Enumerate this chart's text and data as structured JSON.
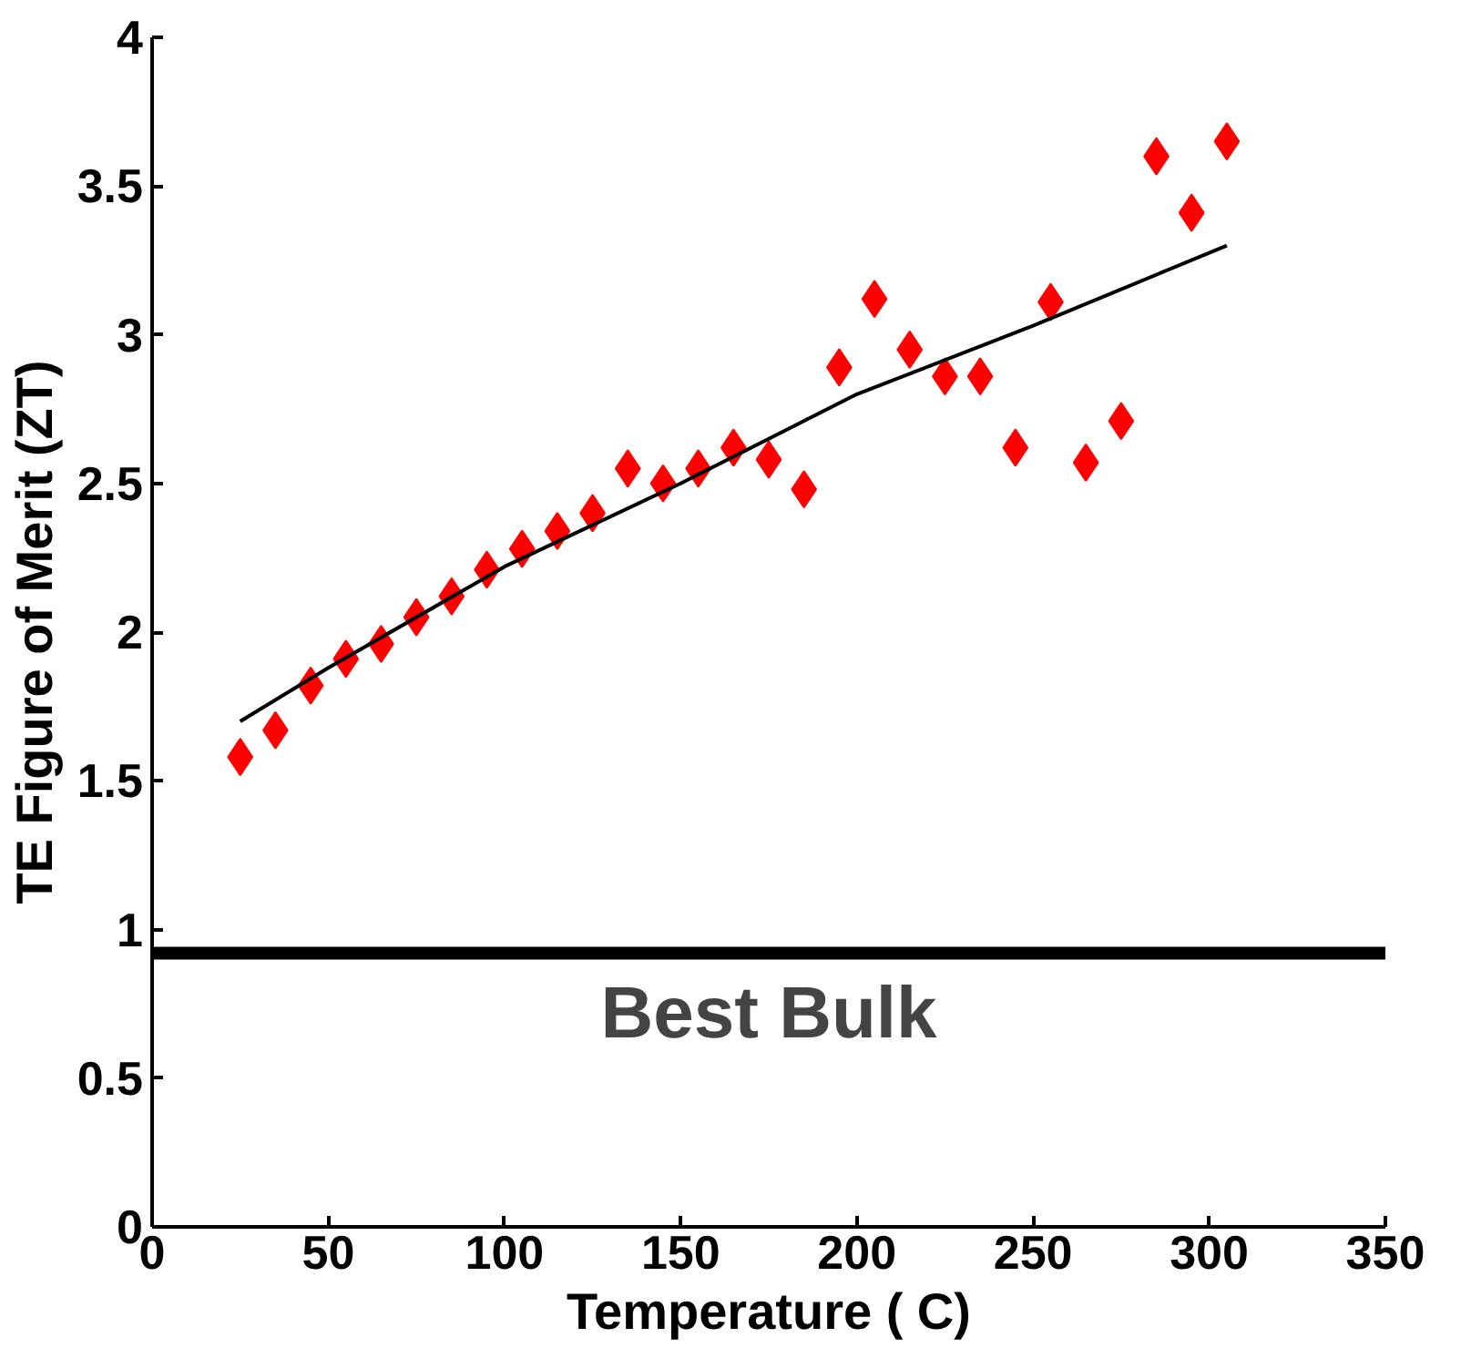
{
  "chart_data": {
    "type": "scatter",
    "xlabel": "Temperature ( C)",
    "ylabel": "TE Figure of Merit (ZT)",
    "xlim": [
      0,
      350
    ],
    "ylim": [
      0,
      4
    ],
    "xticks": [
      0,
      50,
      100,
      150,
      200,
      250,
      300,
      350
    ],
    "yticks": [
      0,
      0.5,
      1,
      1.5,
      2,
      2.5,
      3,
      3.5,
      4
    ],
    "grid": false,
    "series": [
      {
        "marker": "diamond",
        "color": "#ff0000",
        "x": [
          25,
          35,
          45,
          55,
          65,
          75,
          85,
          95,
          105,
          115,
          125,
          135,
          145,
          155,
          165,
          175,
          185,
          195,
          205,
          215,
          225,
          235,
          245,
          255,
          265,
          275,
          285,
          295,
          305
        ],
        "values": [
          1.58,
          1.67,
          1.82,
          1.91,
          1.96,
          2.05,
          2.12,
          2.21,
          2.28,
          2.34,
          2.4,
          2.55,
          2.5,
          2.55,
          2.62,
          2.58,
          2.48,
          2.89,
          3.12,
          2.95,
          2.86,
          2.86,
          2.62,
          3.11,
          2.57,
          2.71,
          3.6,
          3.41,
          3.65
        ]
      },
      {
        "type": "line",
        "marker": "none",
        "color": "#000000",
        "x": [
          25,
          50,
          100,
          150,
          200,
          250,
          305
        ],
        "values": [
          1.7,
          1.88,
          2.22,
          2.5,
          2.8,
          3.03,
          3.3
        ]
      }
    ],
    "ref_lines": [
      {
        "axis": "y",
        "value": 0.92,
        "label": "Best Bulk",
        "color": "#000000"
      }
    ]
  }
}
